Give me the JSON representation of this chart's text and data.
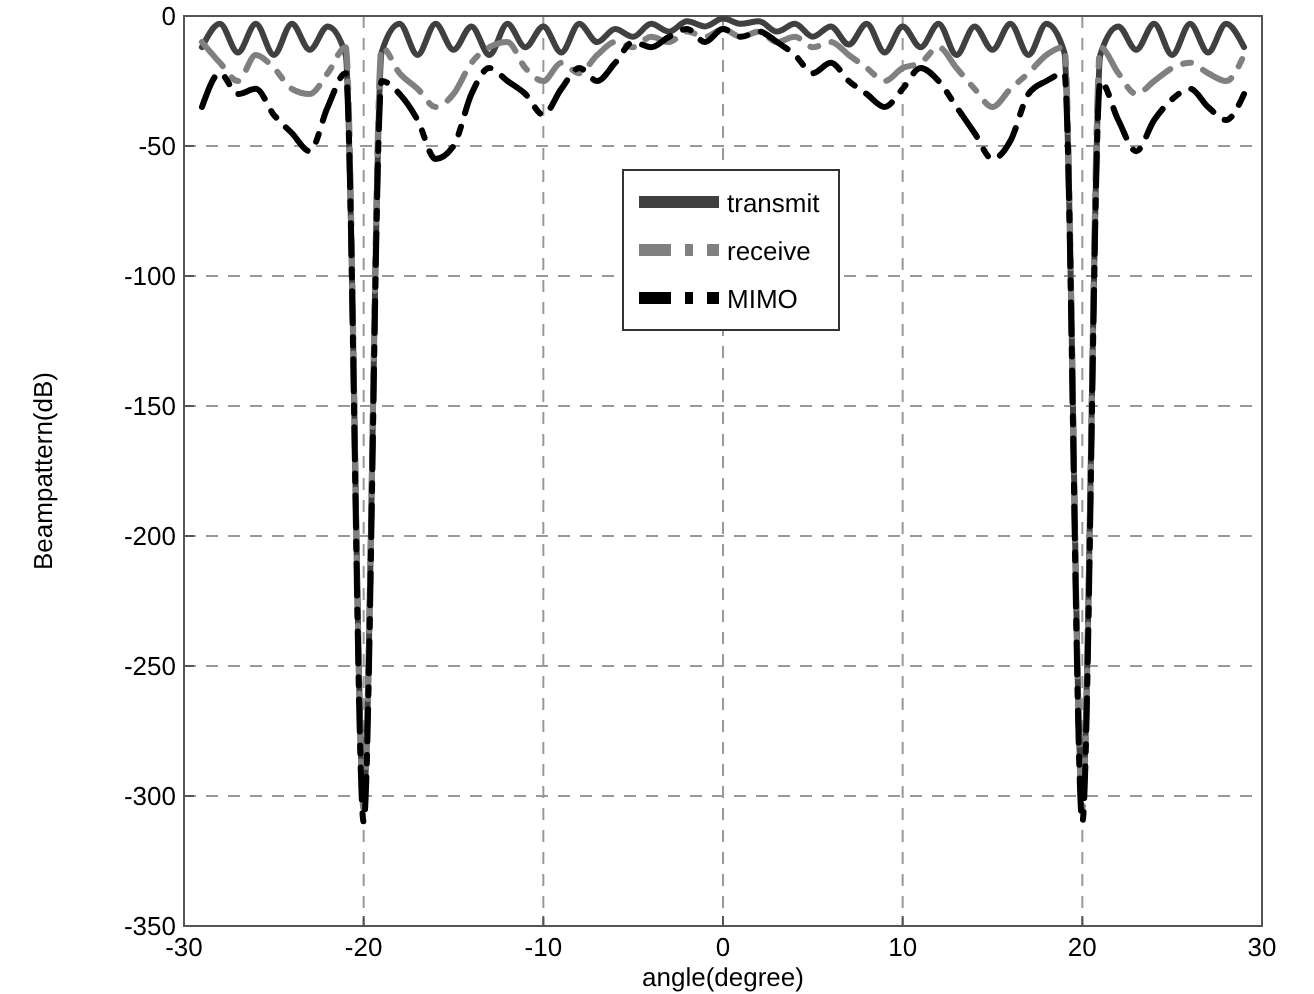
{
  "chart_data": {
    "type": "line",
    "xlabel": "angle(degree)",
    "ylabel": "Beampattern(dB)",
    "xlim": [
      -30,
      30
    ],
    "ylim": [
      -350,
      0
    ],
    "xticks": [
      -30,
      -20,
      -10,
      0,
      10,
      20,
      30
    ],
    "yticks": [
      -350,
      -300,
      -250,
      -200,
      -150,
      -100,
      -50,
      0
    ],
    "grid": true,
    "legend": "top",
    "marker": "none",
    "x": [
      -29,
      -28,
      -27,
      -26,
      -25,
      -24,
      -23,
      -22,
      -21,
      -20,
      -19,
      -18,
      -17,
      -16,
      -15,
      -14,
      -13,
      -12,
      -11,
      -10,
      -9,
      -8,
      -7,
      -6,
      -5,
      -4,
      -3,
      -2,
      -1,
      0,
      1,
      2,
      3,
      4,
      5,
      6,
      7,
      8,
      9,
      10,
      11,
      12,
      13,
      14,
      15,
      16,
      17,
      18,
      19,
      20,
      21,
      22,
      23,
      24,
      25,
      26,
      27,
      28,
      29
    ],
    "series": [
      {
        "name": "transmit",
        "color": "#404040",
        "line_style": "solid",
        "values": [
          -12,
          -3,
          -14,
          -3,
          -15,
          -3,
          -13,
          -4,
          -15,
          -300,
          -14,
          -3,
          -15,
          -3,
          -13,
          -4,
          -15,
          -3,
          -12,
          -4,
          -14,
          -3,
          -10,
          -5,
          -8,
          -3,
          -6,
          -2,
          -4,
          -1,
          -3,
          -2,
          -6,
          -3,
          -8,
          -4,
          -11,
          -3,
          -14,
          -4,
          -12,
          -3,
          -15,
          -4,
          -13,
          -3,
          -15,
          -3,
          -14,
          -300,
          -15,
          -4,
          -13,
          -3,
          -15,
          -3,
          -14,
          -3,
          -12
        ]
      },
      {
        "name": "receive",
        "color": "#808080",
        "line_style": "dashdot",
        "values": [
          -10,
          -18,
          -25,
          -15,
          -20,
          -28,
          -30,
          -22,
          -12,
          -305,
          -12,
          -22,
          -28,
          -35,
          -30,
          -18,
          -12,
          -10,
          -20,
          -25,
          -18,
          -22,
          -15,
          -10,
          -12,
          -8,
          -10,
          -6,
          -8,
          -5,
          -8,
          -6,
          -10,
          -8,
          -12,
          -10,
          -15,
          -20,
          -25,
          -20,
          -18,
          -12,
          -20,
          -28,
          -35,
          -28,
          -22,
          -15,
          -12,
          -305,
          -12,
          -22,
          -30,
          -25,
          -20,
          -18,
          -22,
          -25,
          -15
        ]
      },
      {
        "name": "MIMO",
        "color": "#000000",
        "line_style": "dashdot",
        "values": [
          -35,
          -22,
          -30,
          -28,
          -38,
          -45,
          -52,
          -35,
          -22,
          -310,
          -25,
          -30,
          -40,
          -55,
          -50,
          -30,
          -20,
          -25,
          -30,
          -38,
          -28,
          -20,
          -25,
          -18,
          -10,
          -12,
          -8,
          -5,
          -10,
          -5,
          -8,
          -6,
          -10,
          -15,
          -22,
          -18,
          -25,
          -30,
          -35,
          -28,
          -20,
          -25,
          -35,
          -45,
          -55,
          -48,
          -30,
          -25,
          -22,
          -310,
          -25,
          -40,
          -52,
          -40,
          -32,
          -28,
          -35,
          -40,
          -30
        ]
      }
    ]
  }
}
